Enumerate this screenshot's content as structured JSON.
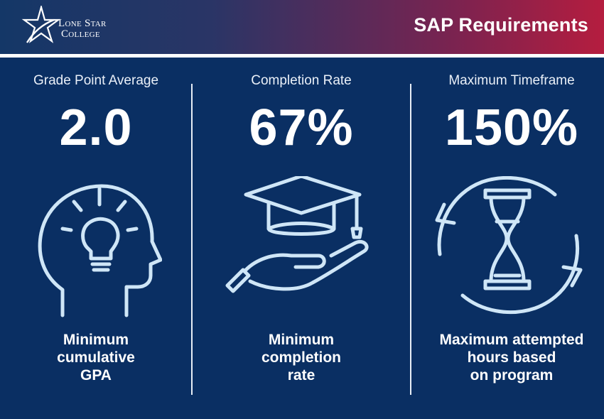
{
  "header": {
    "logo_line1": "Lone Star",
    "logo_line2": "College",
    "title": "SAP Requirements"
  },
  "columns": [
    {
      "label": "Grade Point Average",
      "value": "2.0",
      "caption_lines": [
        "Minimum",
        "cumulative",
        "GPA"
      ],
      "icon": "head-lightbulb-icon"
    },
    {
      "label": "Completion Rate",
      "value": "67%",
      "caption_lines": [
        "Minimum",
        "completion",
        "rate"
      ],
      "icon": "graduation-cap-hand-icon"
    },
    {
      "label": "Maximum Timeframe",
      "value": "150%",
      "caption_lines": [
        "Maximum attempted",
        "hours based",
        "on program"
      ],
      "icon": "hourglass-cycle-icon"
    }
  ],
  "colors": {
    "background": "#0a2f63",
    "icon_stroke": "#cfe6f7",
    "header_left": "#143767",
    "header_right": "#b51d3f"
  }
}
